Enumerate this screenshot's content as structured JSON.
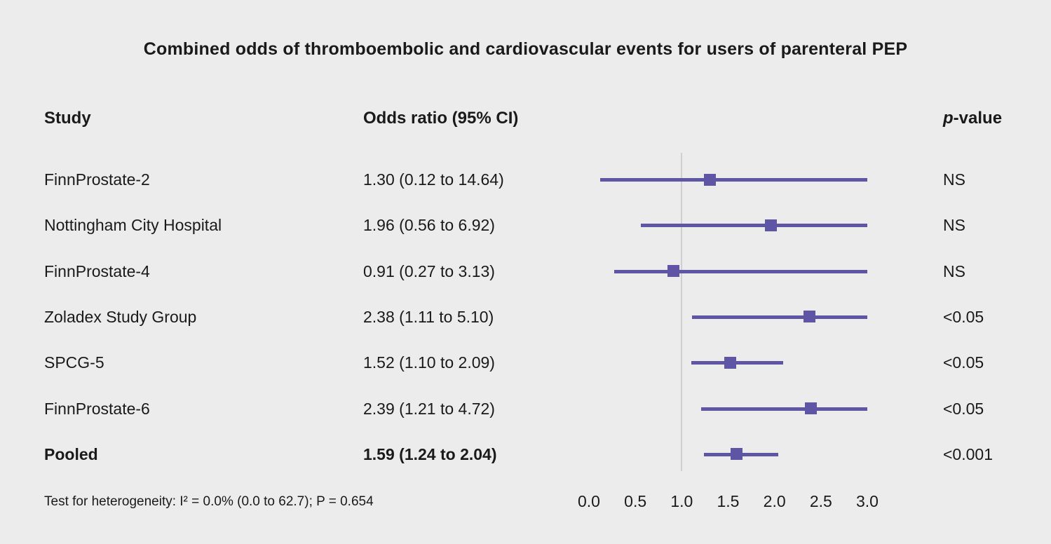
{
  "title": "Combined odds of thromboembolic and cardiovascular events for users of parenteral PEP",
  "columns": {
    "study": "Study",
    "odds_ratio": "Odds ratio (95% CI)",
    "p_italic": "p",
    "p_rest": "-value"
  },
  "footer": "Test for heterogeneity: I² = 0.0% (0.0 to 62.7); P = 0.654",
  "chart_data": {
    "type": "forest",
    "title": "Combined odds of thromboembolic and cardiovascular events for users of parenteral PEP",
    "x_range": [
      0.0,
      3.0
    ],
    "xlabel_ticks": [
      0.0,
      0.5,
      1.0,
      1.5,
      2.0,
      2.5,
      3.0
    ],
    "reference_line": 1.0,
    "rows": [
      {
        "study": "FinnProstate-2",
        "or_text": "1.30 (0.12 to 14.64)",
        "or": 1.3,
        "ci_low": 0.12,
        "ci_high": 14.64,
        "p": "NS",
        "bold": false
      },
      {
        "study": "Nottingham City Hospital",
        "or_text": "1.96 (0.56 to 6.92)",
        "or": 1.96,
        "ci_low": 0.56,
        "ci_high": 6.92,
        "p": "NS",
        "bold": false
      },
      {
        "study": "FinnProstate-4",
        "or_text": "0.91 (0.27 to 3.13)",
        "or": 0.91,
        "ci_low": 0.27,
        "ci_high": 3.13,
        "p": "NS",
        "bold": false
      },
      {
        "study": "Zoladex Study Group",
        "or_text": "2.38 (1.11 to 5.10)",
        "or": 2.38,
        "ci_low": 1.11,
        "ci_high": 5.1,
        "p": "<0.05",
        "bold": false
      },
      {
        "study": "SPCG-5",
        "or_text": "1.52 (1.10 to 2.09)",
        "or": 1.52,
        "ci_low": 1.1,
        "ci_high": 2.09,
        "p": "<0.05",
        "bold": false
      },
      {
        "study": "FinnProstate-6",
        "or_text": "2.39 (1.21 to 4.72)",
        "or": 2.39,
        "ci_low": 1.21,
        "ci_high": 4.72,
        "p": "<0.05",
        "bold": false
      },
      {
        "study": "Pooled",
        "or_text": "1.59 (1.24 to 2.04)",
        "or": 1.59,
        "ci_low": 1.24,
        "ci_high": 2.04,
        "p": "<0.001",
        "bold": true
      }
    ],
    "colors": {
      "marker": "#5f55a5",
      "line": "#5f55a5",
      "reference": "#cfcfcf",
      "background": "#ececec",
      "text": "#1a1a1a"
    }
  }
}
